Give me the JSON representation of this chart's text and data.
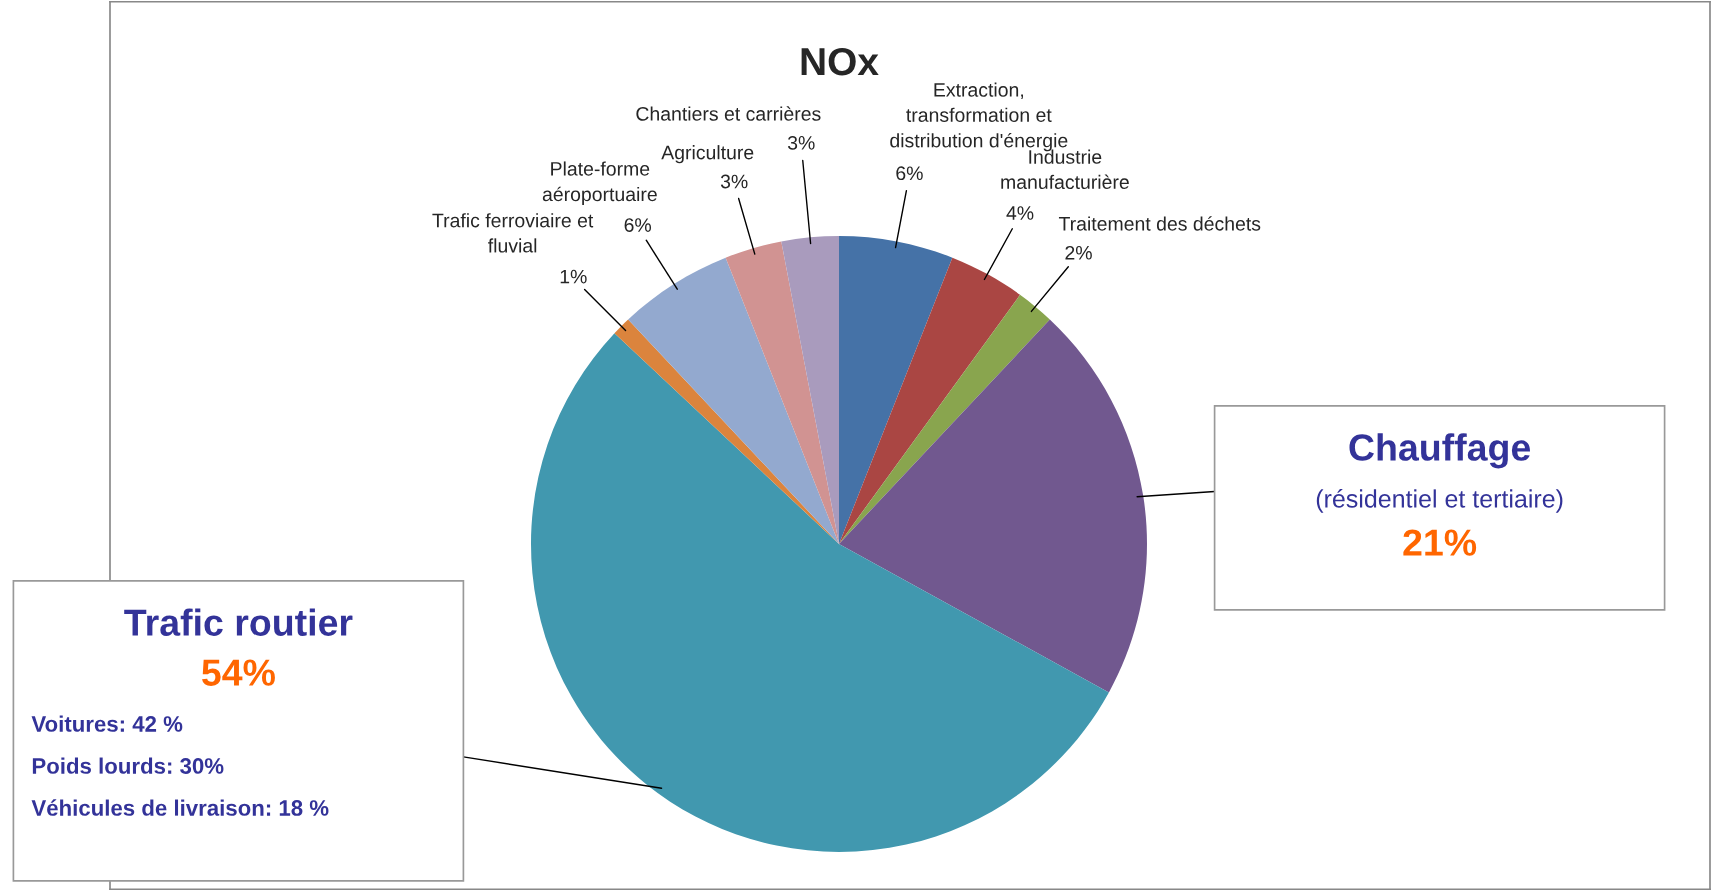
{
  "chart_data": {
    "type": "pie",
    "title": "NOx",
    "categories": [
      "Extraction, transformation et distribution d'énergie",
      "Industrie manufacturière",
      "Traitement des déchets",
      "Chauffage",
      "Trafic routier",
      "Trafic ferroviaire et fluvial",
      "Plate-forme aéroportuaire",
      "Agriculture",
      "Chantiers et carrières"
    ],
    "values": [
      6,
      4,
      2,
      21,
      54,
      1,
      6,
      3,
      3
    ],
    "colors": [
      "#4572a7",
      "#aa4643",
      "#89a54e",
      "#71588f",
      "#4198af",
      "#db843d",
      "#93a9cf",
      "#d19392",
      "#a99bbd"
    ],
    "value_labels": [
      "6%",
      "4%",
      "2%",
      "21%",
      "54%",
      "1%",
      "6%",
      "3%",
      "3%"
    ],
    "annotations": [
      {
        "text": "(résidentiel et tertiaire)",
        "x": "Chauffage"
      },
      {
        "text": "Voitures: 42 %",
        "x": "Trafic routier"
      },
      {
        "text": "Poids lourds: 30%",
        "x": "Trafic routier"
      },
      {
        "text": "Véhicules de livraison: 18 %",
        "x": "Trafic routier"
      }
    ]
  }
}
